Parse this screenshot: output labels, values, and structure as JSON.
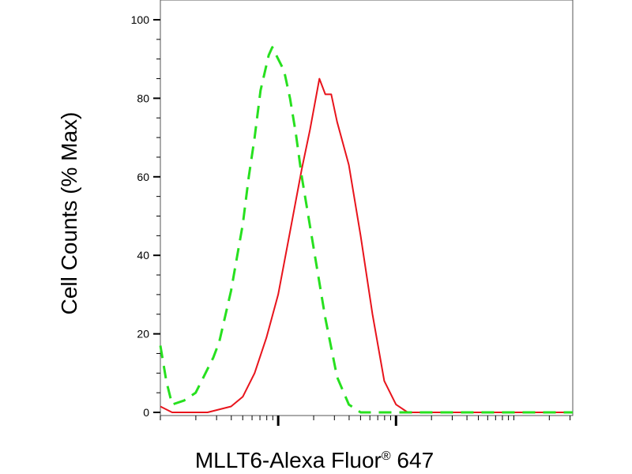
{
  "chart_data": {
    "type": "line",
    "ylabel": "Cell Counts (% Max)",
    "xlabel_prefix": "MLLT6-Alexa Fluor",
    "xlabel_mark": "®",
    "xlabel_suffix": " 647",
    "ylim": [
      0,
      100
    ],
    "yticks": [
      "0",
      "20",
      "40",
      "60",
      "80",
      "100"
    ],
    "xscale": "log",
    "xlim": [
      0,
      3.5
    ],
    "x_major_ticks": [
      1,
      2
    ],
    "grid": false,
    "series": [
      {
        "color": "#ff00ff",
        "style": "solid",
        "stroke": "#e8141c",
        "points": [
          [
            0.0,
            1.5
          ],
          [
            0.1,
            0
          ],
          [
            0.2,
            0
          ],
          [
            0.4,
            0
          ],
          [
            0.6,
            1.5
          ],
          [
            0.7,
            4
          ],
          [
            0.8,
            10
          ],
          [
            0.9,
            19
          ],
          [
            1.0,
            30
          ],
          [
            1.1,
            46
          ],
          [
            1.2,
            62
          ],
          [
            1.27,
            72
          ],
          [
            1.35,
            85
          ],
          [
            1.4,
            81
          ],
          [
            1.45,
            81
          ],
          [
            1.5,
            74
          ],
          [
            1.6,
            63
          ],
          [
            1.7,
            45
          ],
          [
            1.8,
            25
          ],
          [
            1.9,
            8
          ],
          [
            2.0,
            2
          ],
          [
            2.1,
            0
          ],
          [
            2.5,
            0
          ],
          [
            3.0,
            0
          ],
          [
            3.5,
            0
          ]
        ]
      },
      {
        "color": "#22dd22",
        "style": "dashed",
        "stroke": "#27e01f",
        "points": [
          [
            0.0,
            17
          ],
          [
            0.05,
            8
          ],
          [
            0.1,
            2
          ],
          [
            0.2,
            3
          ],
          [
            0.3,
            5
          ],
          [
            0.35,
            8
          ],
          [
            0.45,
            14
          ],
          [
            0.5,
            18
          ],
          [
            0.6,
            31
          ],
          [
            0.7,
            48
          ],
          [
            0.75,
            60
          ],
          [
            0.8,
            70
          ],
          [
            0.85,
            82
          ],
          [
            0.92,
            91
          ],
          [
            0.95,
            93
          ],
          [
            1.0,
            90
          ],
          [
            1.05,
            87
          ],
          [
            1.1,
            80
          ],
          [
            1.15,
            71
          ],
          [
            1.2,
            60
          ],
          [
            1.3,
            42
          ],
          [
            1.4,
            24
          ],
          [
            1.5,
            9
          ],
          [
            1.6,
            2
          ],
          [
            1.7,
            0
          ],
          [
            1.8,
            0
          ],
          [
            2.0,
            0
          ],
          [
            3.5,
            0
          ]
        ]
      }
    ]
  }
}
